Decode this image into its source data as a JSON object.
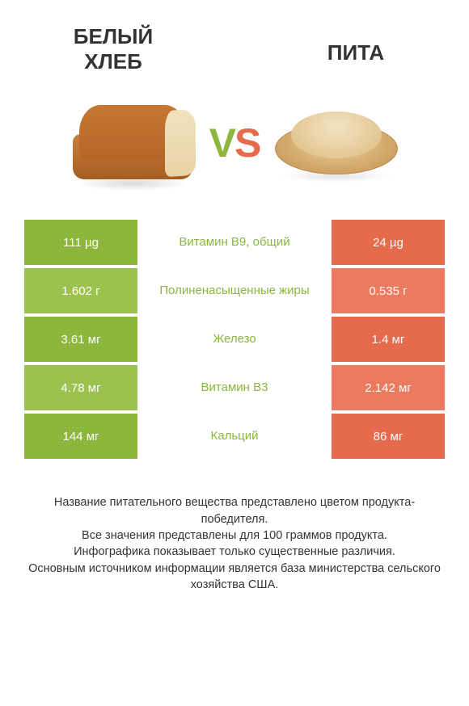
{
  "titles": {
    "left": "БЕЛЫЙ ХЛЕБ",
    "right": "ПИТА"
  },
  "vs": {
    "v": "V",
    "s": "S"
  },
  "colors": {
    "left_cell": "#8cb63c",
    "right_cell": "#e66a4c",
    "left_cell_alt": "#9bc24e",
    "right_cell_alt": "#eb7a5e",
    "mid_label_winner_left": "#8cb63c",
    "mid_label_winner_right": "#e66a4c",
    "text": "#333333",
    "background": "#ffffff"
  },
  "table": {
    "rows": [
      {
        "left": "111 µg",
        "mid": "Витамин B9, общий",
        "right": "24 µg",
        "winner": "left"
      },
      {
        "left": "1.602 г",
        "mid": "Полиненасыщенные жиры",
        "right": "0.535 г",
        "winner": "left"
      },
      {
        "left": "3.61 мг",
        "mid": "Железо",
        "right": "1.4 мг",
        "winner": "left"
      },
      {
        "left": "4.78 мг",
        "mid": "Витамин B3",
        "right": "2.142 мг",
        "winner": "left"
      },
      {
        "left": "144 мг",
        "mid": "Кальций",
        "right": "86 мг",
        "winner": "left"
      }
    ]
  },
  "footer": {
    "line1": "Название питательного вещества представлено цветом продукта-победителя.",
    "line2": "Все значения представлены для 100 граммов продукта.",
    "line3": "Инфографика показывает только существенные различия.",
    "line4": "Основным источником информации является база министерства сельского хозяйства США."
  },
  "fonts": {
    "title": 26,
    "cell": 15,
    "footer": 14.5,
    "vs": 50
  }
}
